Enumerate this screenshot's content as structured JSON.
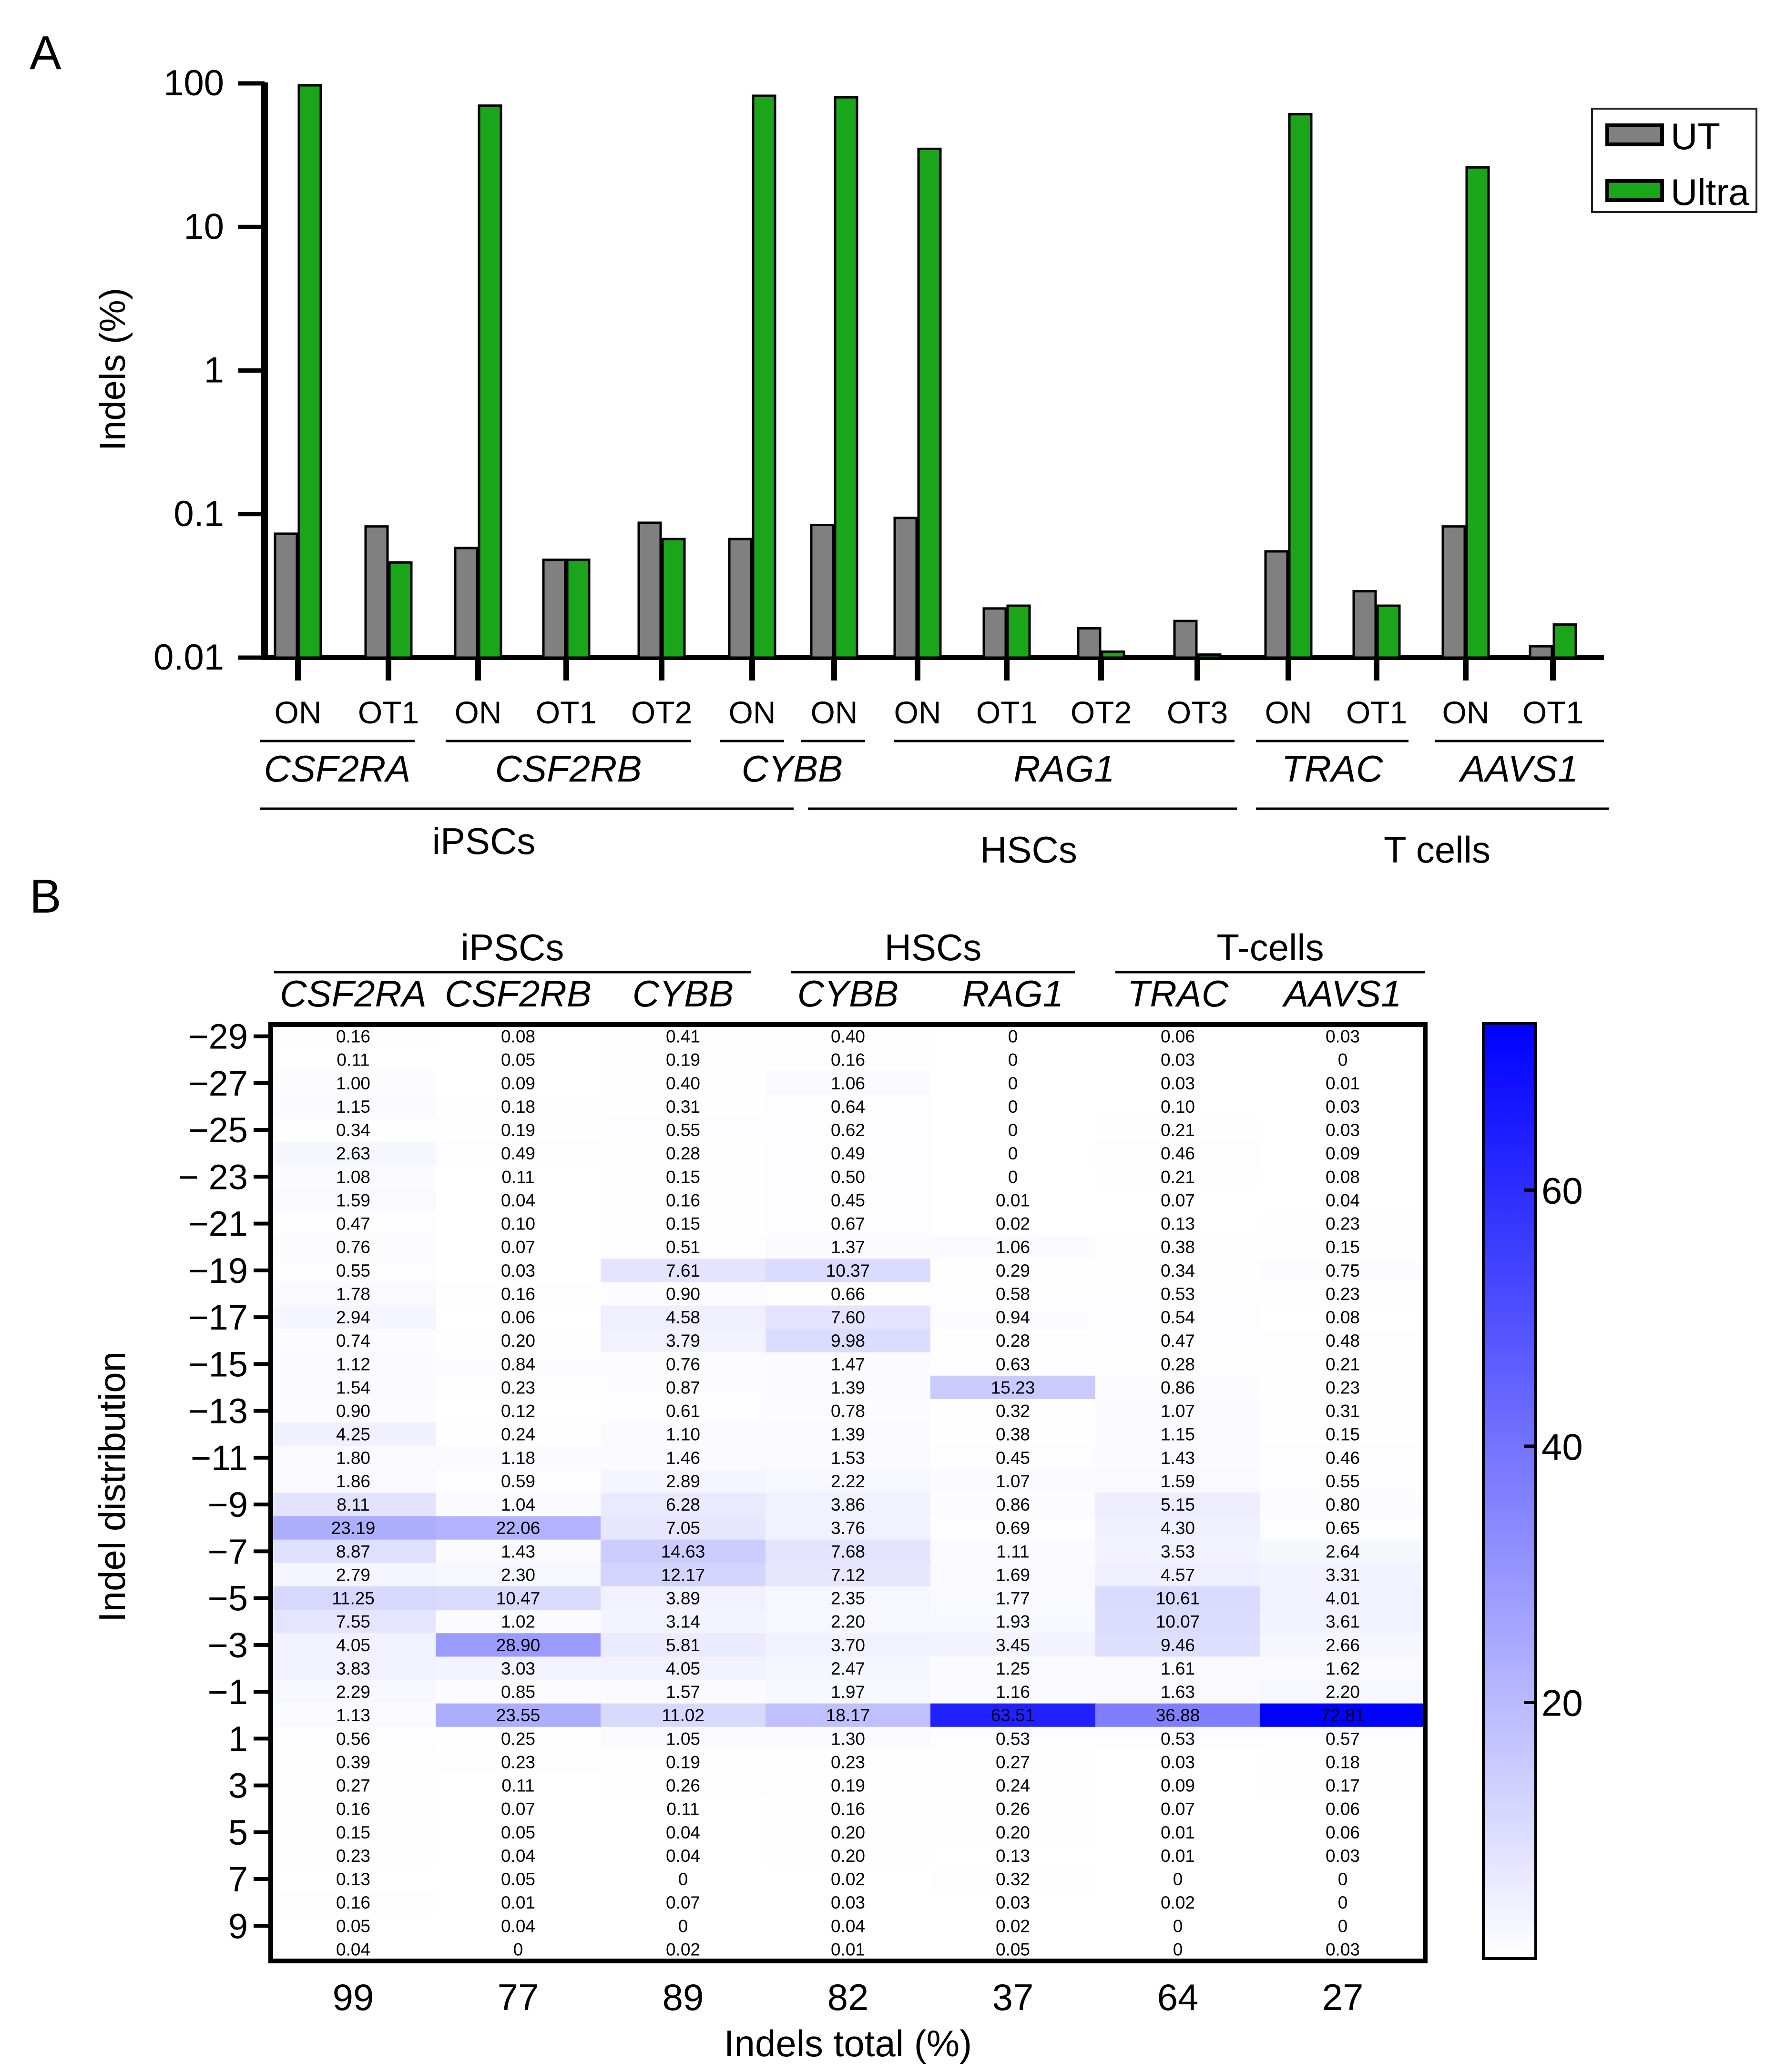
{
  "chart_data": [
    {
      "panel_label": "A",
      "type": "bar",
      "ylabel": "Indels (%)",
      "yscale": "log",
      "ylim": [
        0.01,
        100
      ],
      "yticks": [
        "0.01",
        "0.1",
        "1",
        "10",
        "100"
      ],
      "categories": [
        "ON",
        "OT1",
        "ON",
        "OT1",
        "OT2",
        "ON",
        "ON",
        "ON",
        "OT1",
        "OT2",
        "OT3",
        "ON",
        "OT1",
        "ON",
        "OT1"
      ],
      "series": [
        {
          "name": "UT",
          "color": "#808080",
          "values": [
            0.073,
            0.082,
            0.058,
            0.048,
            0.087,
            0.067,
            0.084,
            0.094,
            0.022,
            0.016,
            0.018,
            0.055,
            0.029,
            0.082,
            0.012
          ]
        },
        {
          "name": "Ultra",
          "color": "#1aa51a",
          "values": [
            97,
            0.046,
            70,
            0.048,
            0.067,
            82,
            80,
            35,
            0.023,
            0.011,
            0.0105,
            61,
            0.023,
            26,
            0.017
          ]
        }
      ],
      "gene_groups": [
        {
          "label": "CSF2RA",
          "from": 0,
          "to": 1
        },
        {
          "label": "CSF2RB",
          "from": 2,
          "to": 4
        },
        {
          "label": "CYBB",
          "from": 5,
          "to": 5
        },
        {
          "label": "CYBB",
          "from": 6,
          "to": 6,
          "hidden_label": true
        },
        {
          "label": "RAG1",
          "from": 7,
          "to": 10
        },
        {
          "label": "TRAC",
          "from": 11,
          "to": 12
        },
        {
          "label": "AAVS1",
          "from": 13,
          "to": 14
        }
      ],
      "cell_groups": [
        {
          "label": "iPSCs",
          "from": 0,
          "to": 5
        },
        {
          "label": "HSCs",
          "from": 6,
          "to": 10
        },
        {
          "label": "T cells",
          "from": 11,
          "to": 14
        }
      ],
      "legend": {
        "position": "top-right",
        "entries": [
          "UT",
          "Ultra"
        ]
      }
    },
    {
      "panel_label": "B",
      "type": "heatmap",
      "ylabel": "Indel distribution",
      "xlabel": "Indels total (%)",
      "y_tick_labels": [
        "−29",
        "−27",
        "−25",
        "− 23",
        "−21",
        "−19",
        "−17",
        "−15",
        "−13",
        "−11",
        "−9",
        "−7",
        "−5",
        "−3",
        "−1",
        "1",
        "3",
        "5",
        "7",
        "9"
      ],
      "cell_groups": [
        {
          "label": "iPSCs",
          "from": 0,
          "to": 2
        },
        {
          "label": "HSCs",
          "from": 3,
          "to": 4
        },
        {
          "label": "T-cells",
          "from": 5,
          "to": 6
        }
      ],
      "columns": [
        "CSF2RA",
        "CSF2RB",
        "CYBB",
        "CYBB",
        "RAG1",
        "TRAC",
        "AAVS1"
      ],
      "totals": [
        "99",
        "77",
        "89",
        "82",
        "37",
        "64",
        "27"
      ],
      "colorbar": {
        "min": 0,
        "max": 73,
        "ticks": [
          "20",
          "40",
          "60"
        ],
        "low_color": "#ffffff",
        "high_color": "#0000ff"
      },
      "values": [
        [
          "0.16",
          "0.08",
          "0.41",
          "0.40",
          "0",
          "0.06",
          "0.03"
        ],
        [
          "0.11",
          "0.05",
          "0.19",
          "0.16",
          "0",
          "0.03",
          "0"
        ],
        [
          "1.00",
          "0.09",
          "0.40",
          "1.06",
          "0",
          "0.03",
          "0.01"
        ],
        [
          "1.15",
          "0.18",
          "0.31",
          "0.64",
          "0",
          "0.10",
          "0.03"
        ],
        [
          "0.34",
          "0.19",
          "0.55",
          "0.62",
          "0",
          "0.21",
          "0.03"
        ],
        [
          "2.63",
          "0.49",
          "0.28",
          "0.49",
          "0",
          "0.46",
          "0.09"
        ],
        [
          "1.08",
          "0.11",
          "0.15",
          "0.50",
          "0",
          "0.21",
          "0.08"
        ],
        [
          "1.59",
          "0.04",
          "0.16",
          "0.45",
          "0.01",
          "0.07",
          "0.04"
        ],
        [
          "0.47",
          "0.10",
          "0.15",
          "0.67",
          "0.02",
          "0.13",
          "0.23"
        ],
        [
          "0.76",
          "0.07",
          "0.51",
          "1.37",
          "1.06",
          "0.38",
          "0.15"
        ],
        [
          "0.55",
          "0.03",
          "7.61",
          "10.37",
          "0.29",
          "0.34",
          "0.75"
        ],
        [
          "1.78",
          "0.16",
          "0.90",
          "0.66",
          "0.58",
          "0.53",
          "0.23"
        ],
        [
          "2.94",
          "0.06",
          "4.58",
          "7.60",
          "0.94",
          "0.54",
          "0.08"
        ],
        [
          "0.74",
          "0.20",
          "3.79",
          "9.98",
          "0.28",
          "0.47",
          "0.48"
        ],
        [
          "1.12",
          "0.84",
          "0.76",
          "1.47",
          "0.63",
          "0.28",
          "0.21"
        ],
        [
          "1.54",
          "0.23",
          "0.87",
          "1.39",
          "15.23",
          "0.86",
          "0.23"
        ],
        [
          "0.90",
          "0.12",
          "0.61",
          "0.78",
          "0.32",
          "1.07",
          "0.31"
        ],
        [
          "4.25",
          "0.24",
          "1.10",
          "1.39",
          "0.38",
          "1.15",
          "0.15"
        ],
        [
          "1.80",
          "1.18",
          "1.46",
          "1.53",
          "0.45",
          "1.43",
          "0.46"
        ],
        [
          "1.86",
          "0.59",
          "2.89",
          "2.22",
          "1.07",
          "1.59",
          "0.55"
        ],
        [
          "8.11",
          "1.04",
          "6.28",
          "3.86",
          "0.86",
          "5.15",
          "0.80"
        ],
        [
          "23.19",
          "22.06",
          "7.05",
          "3.76",
          "0.69",
          "4.30",
          "0.65"
        ],
        [
          "8.87",
          "1.43",
          "14.63",
          "7.68",
          "1.11",
          "3.53",
          "2.64"
        ],
        [
          "2.79",
          "2.30",
          "12.17",
          "7.12",
          "1.69",
          "4.57",
          "3.31"
        ],
        [
          "11.25",
          "10.47",
          "3.89",
          "2.35",
          "1.77",
          "10.61",
          "4.01"
        ],
        [
          "7.55",
          "1.02",
          "3.14",
          "2.20",
          "1.93",
          "10.07",
          "3.61"
        ],
        [
          "4.05",
          "28.90",
          "5.81",
          "3.70",
          "3.45",
          "9.46",
          "2.66"
        ],
        [
          "3.83",
          "3.03",
          "4.05",
          "2.47",
          "1.25",
          "1.61",
          "1.62"
        ],
        [
          "2.29",
          "0.85",
          "1.57",
          "1.97",
          "1.16",
          "1.63",
          "2.20"
        ],
        [
          "1.13",
          "23.55",
          "11.02",
          "18.17",
          "63.51",
          "36.88",
          "72.81"
        ],
        [
          "0.56",
          "0.25",
          "1.05",
          "1.30",
          "0.53",
          "0.53",
          "0.57"
        ],
        [
          "0.39",
          "0.23",
          "0.19",
          "0.23",
          "0.27",
          "0.03",
          "0.18"
        ],
        [
          "0.27",
          "0.11",
          "0.26",
          "0.19",
          "0.24",
          "0.09",
          "0.17"
        ],
        [
          "0.16",
          "0.07",
          "0.11",
          "0.16",
          "0.26",
          "0.07",
          "0.06"
        ],
        [
          "0.15",
          "0.05",
          "0.04",
          "0.20",
          "0.20",
          "0.01",
          "0.06"
        ],
        [
          "0.23",
          "0.04",
          "0.04",
          "0.20",
          "0.13",
          "0.01",
          "0.03"
        ],
        [
          "0.13",
          "0.05",
          "0",
          "0.02",
          "0.32",
          "0",
          "0"
        ],
        [
          "0.16",
          "0.01",
          "0.07",
          "0.03",
          "0.03",
          "0.02",
          "0"
        ],
        [
          "0.05",
          "0.04",
          "0",
          "0.04",
          "0.02",
          "0",
          "0"
        ],
        [
          "0.04",
          "0",
          "0.02",
          "0.01",
          "0.05",
          "0",
          "0.03"
        ]
      ]
    }
  ]
}
